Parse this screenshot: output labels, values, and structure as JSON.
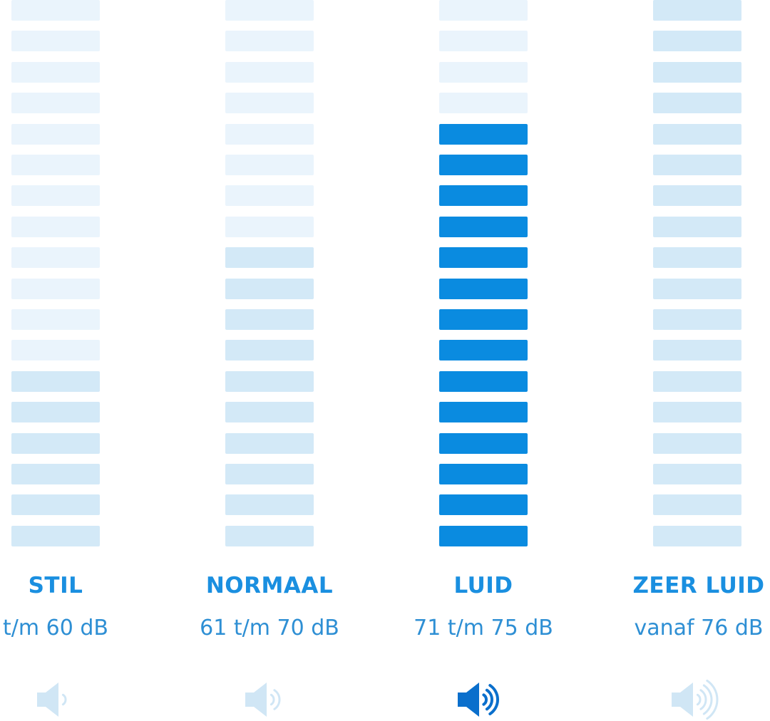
{
  "levels": [
    {
      "label": "STIL",
      "range": "t/m 60 dB",
      "speaker_icon": "speaker-one-wave-icon",
      "waves": 1,
      "filled_bars": 6,
      "total_bars": 18,
      "active": false
    },
    {
      "label": "NORMAAL",
      "range": "61 t/m 70 dB",
      "speaker_icon": "speaker-two-waves-icon",
      "waves": 2,
      "filled_bars": 10,
      "total_bars": 18,
      "active": false
    },
    {
      "label": "LUID",
      "range": "71 t/m 75 dB",
      "speaker_icon": "speaker-three-waves-icon",
      "waves": 3,
      "filled_bars": 14,
      "total_bars": 18,
      "active": true
    },
    {
      "label": "ZEER LUID",
      "range": "vanaf 76 dB",
      "speaker_icon": "speaker-four-waves-icon",
      "waves": 4,
      "filled_bars": 18,
      "total_bars": 18,
      "active": false
    }
  ],
  "colors": {
    "active_bar": "#0a8be0",
    "inactive_bar": "#d3e9f7",
    "dim_bar": "#eaf4fc",
    "text": "#1a8fe0",
    "active_speaker": "#0a6fcc",
    "inactive_speaker": "#d0e6f5"
  }
}
